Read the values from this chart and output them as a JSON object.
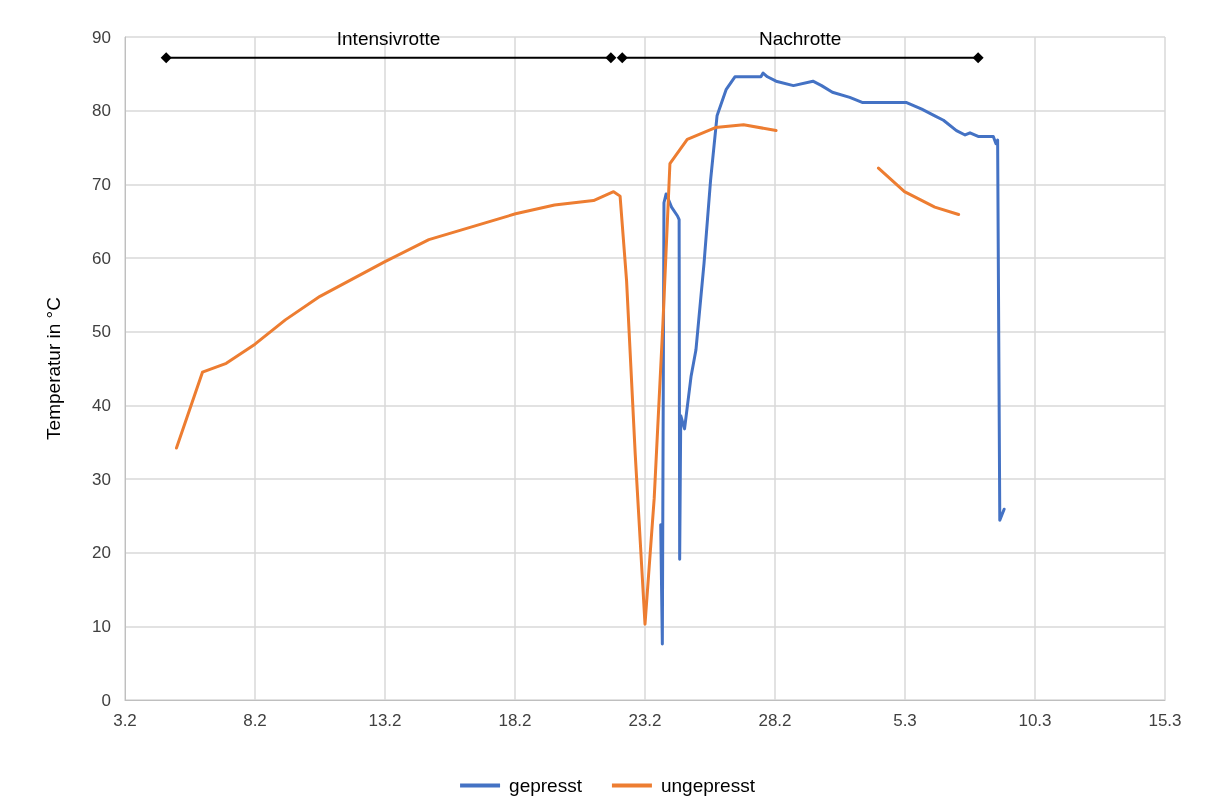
{
  "chart_data": {
    "type": "line",
    "ylabel": "Temperatur in °C",
    "xlim": [
      "--02-03",
      "--03-15"
    ],
    "xticks": [
      {
        "value": "--02-03",
        "label": "3.2"
      },
      {
        "value": "--02-08",
        "label": "8.2"
      },
      {
        "value": "--02-13",
        "label": "13.2"
      },
      {
        "value": "--02-18",
        "label": "18.2"
      },
      {
        "value": "--02-23",
        "label": "23.2"
      },
      {
        "value": "--02-28",
        "label": "28.2"
      },
      {
        "value": "--03-05",
        "label": "5.3"
      },
      {
        "value": "--03-10",
        "label": "10.3"
      },
      {
        "value": "--03-15",
        "label": "15.3"
      }
    ],
    "ylim": [
      0,
      90
    ],
    "yticks": [
      0,
      10,
      20,
      30,
      40,
      50,
      60,
      70,
      80,
      90
    ],
    "grid": true,
    "legend": "bottom",
    "marker": "none",
    "line_style": "solid",
    "series": [
      {
        "name": "gepresst",
        "color": "#4472c4",
        "x": [
          "--02-23T14:30",
          "--02-23T16:00",
          "--02-23T17:30",
          "--02-23T19:30",
          "--02-24T00:30",
          "--02-24T06:00",
          "--02-24T07:30",
          "--02-24T08:00",
          "--02-24T09:00",
          "--02-24T12:30",
          "--02-24T18:30",
          "--02-24T23:00",
          "--02-25T06:30",
          "--02-25T12:30",
          "--02-25T18:30",
          "--02-26T03:00",
          "--02-26T11:00",
          "--02-27T11:00",
          "--02-27T13:00",
          "--02-27T17:00",
          "--02-28T01:00",
          "--02-28T17:00",
          "--03-01T11:00",
          "--03-01T19:00",
          "--03-02T05:00",
          "--03-02T21:00",
          "--03-03T09:00",
          "--03-05T01:30",
          "--03-05T15:30",
          "--03-06T03:30",
          "--03-06T11:30",
          "--03-06T23:30",
          "--03-07T07:30",
          "--03-07T12:00",
          "--03-07T19:30",
          "--03-08T09:30",
          "--03-08T12:00",
          "--03-08T13:30",
          "--03-08T15:30",
          "--03-08T19:30"
        ],
        "values": [
          23.8,
          7.6,
          67.5,
          68.7,
          66.9,
          65.7,
          65.2,
          19.1,
          38.6,
          36.8,
          43.9,
          47.5,
          59.3,
          70.5,
          79.3,
          82.9,
          84.6,
          84.6,
          85.1,
          84.6,
          84.0,
          83.4,
          84.0,
          83.4,
          82.5,
          81.8,
          81.1,
          81.1,
          80.2,
          79.3,
          78.7,
          77.3,
          76.7,
          77.0,
          76.5,
          76.5,
          75.5,
          76.0,
          24.4,
          25.9
        ]
      },
      {
        "name": "ungepresst",
        "color": "#ed7d31",
        "x": [
          "--02-04T23:30",
          "--02-05T23:30",
          "--02-06T21:30",
          "--02-08T00:00",
          "--02-09T04:00",
          "--02-10T12:00",
          "--02-13T00:00",
          "--02-14T16:30",
          "--02-18T00:30",
          "--02-19T12:30",
          "--02-21T00:30",
          "--02-21T19:00",
          "--02-22T01:00",
          "--02-22T07:00",
          "--02-22T15:00",
          "--02-23T00:00",
          "--02-23T08:30",
          "--02-23T16:30",
          "--02-23T23:00",
          "--02-24T15:00",
          "--02-25T17:00",
          "--02-26T19:00",
          "--02-28T01:00",
          "--03-02T00:00",
          "--03-03T23:30",
          "--03-04T23:30",
          "--03-06T03:30",
          "--03-07T01:30"
        ],
        "values": [
          34.2,
          44.5,
          45.7,
          48.3,
          51.6,
          54.8,
          59.5,
          62.5,
          66.0,
          67.2,
          67.8,
          69.0,
          68.4,
          56.9,
          33.3,
          10.3,
          27.4,
          51.0,
          72.8,
          76.1,
          77.7,
          78.1,
          77.3,
          null,
          72.2,
          69.0,
          66.9,
          65.9
        ]
      },
      {
        "name": "Intensivrotte",
        "color": "#000000",
        "marker": "diamond",
        "x": [
          "--02-04T14:00",
          "--02-21T16:30"
        ],
        "values": [
          87.2,
          87.2
        ]
      },
      {
        "name": "Nachrotte",
        "color": "#000000",
        "marker": "diamond",
        "x": [
          "--02-22T03:00",
          "--03-07T19:30"
        ],
        "values": [
          87.2,
          87.2
        ]
      }
    ]
  }
}
